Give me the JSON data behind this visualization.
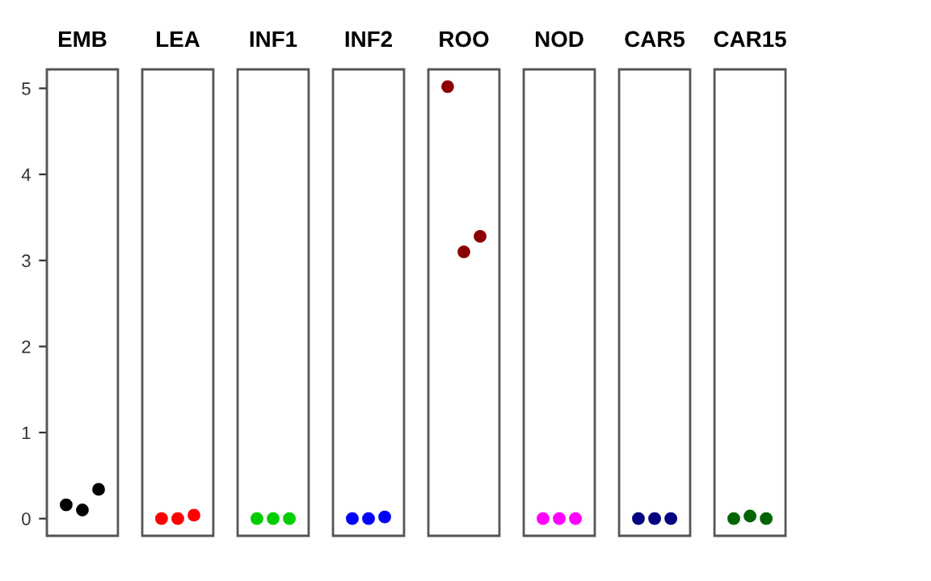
{
  "chart_data": {
    "type": "scatter",
    "categories": [
      "EMB",
      "LEA",
      "INF1",
      "INF2",
      "ROO",
      "NOD",
      "CAR5",
      "CAR15"
    ],
    "series": [
      {
        "values": [
          0.16,
          0,
          0,
          0,
          5.02,
          0,
          0,
          0
        ],
        "colors": [
          "#000000",
          "#ff0000",
          "#00cd00",
          "#0000ff",
          "#8b0000",
          "#ff00ff",
          "#000080",
          "#006400"
        ]
      },
      {
        "values": [
          0.1,
          0,
          0,
          0,
          3.1,
          0,
          0,
          0.03
        ],
        "colors": [
          "#000000",
          "#ff0000",
          "#00cd00",
          "#0000ff",
          "#8b0000",
          "#ff00ff",
          "#000080",
          "#006400"
        ]
      },
      {
        "values": [
          0.34,
          0.04,
          0,
          0.02,
          3.28,
          0,
          0,
          0
        ],
        "colors": [
          "#000000",
          "#ff0000",
          "#00cd00",
          "#0000ff",
          "#8b0000",
          "#ff00ff",
          "#000080",
          "#006400"
        ]
      }
    ],
    "ylim": [
      -0.2,
      5.22
    ],
    "yticks": [
      0,
      1,
      2,
      3,
      4,
      5
    ],
    "marker": "circle"
  }
}
